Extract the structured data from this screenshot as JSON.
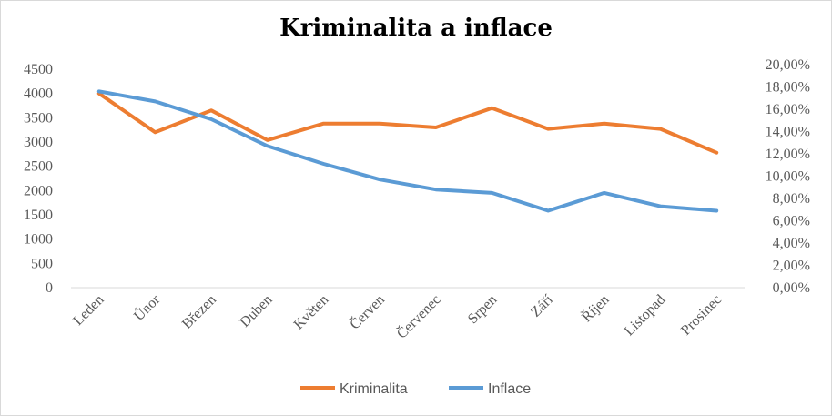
{
  "chart_data": {
    "type": "line",
    "title": "Kriminalita a inflace",
    "categories": [
      "Leden",
      "Únor",
      "Březen",
      "Duben",
      "Květen",
      "Červen",
      "Červenec",
      "Srpen",
      "Září",
      "Říjen",
      "Listopad",
      "Prosinec"
    ],
    "series": [
      {
        "name": "Kriminalita",
        "axis": "left",
        "color": "#ed7d31",
        "values": [
          4000,
          3200,
          3650,
          3040,
          3380,
          3380,
          3300,
          3700,
          3270,
          3380,
          3270,
          2780
        ]
      },
      {
        "name": "Inflace",
        "axis": "right",
        "color": "#5b9bd5",
        "values": [
          0.176,
          0.167,
          0.151,
          0.127,
          0.111,
          0.097,
          0.088,
          0.085,
          0.069,
          0.085,
          0.073,
          0.069
        ]
      }
    ],
    "y_left": {
      "range": [
        0,
        4500
      ],
      "ticks": [
        "4500",
        "4000",
        "3500",
        "3000",
        "2500",
        "2000",
        "1500",
        "1000",
        "500",
        "0"
      ]
    },
    "y_right": {
      "range": [
        0,
        0.2
      ],
      "ticks": [
        "20,00%",
        "18,00%",
        "16,00%",
        "14,00%",
        "12,00%",
        "10,00%",
        "8,00%",
        "6,00%",
        "4,00%",
        "2,00%",
        "0,00%"
      ]
    },
    "grid": false,
    "legend": {
      "position": "bottom",
      "items": [
        "Kriminalita",
        "Inflace"
      ]
    }
  }
}
